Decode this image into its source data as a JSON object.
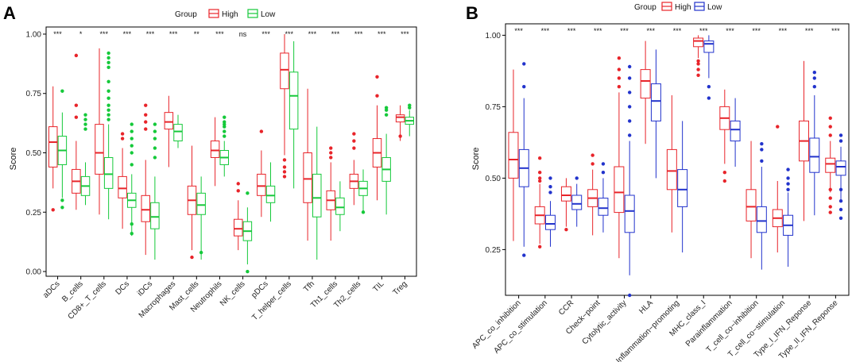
{
  "colors": {
    "high_a": "#e8242a",
    "low_a": "#15c93a",
    "high_b": "#e8242a",
    "low_b": "#2233cc"
  },
  "chart_data": [
    {
      "type": "boxplot",
      "panel_label": "A",
      "legend": {
        "title": "Group",
        "entries": [
          "High",
          "Low"
        ],
        "position": "top"
      },
      "ylabel": "Score",
      "ylim": [
        -0.02,
        1.03
      ],
      "yticks": [
        0.0,
        0.25,
        0.5,
        0.75,
        1.0
      ],
      "ytick_labels": [
        "0.00",
        "0.25",
        "0.50",
        "0.75",
        "1.00"
      ],
      "categories": [
        "aDCs",
        "B_cells",
        "CD8+_T_cells",
        "DCs",
        "iDCs",
        "Macrophages",
        "Mast_cells",
        "Neutrophils",
        "NK_cells",
        "pDCs",
        "T_helper_cells",
        "Tfh",
        "Th1_cells",
        "Th2_cells",
        "TIL",
        "Treg"
      ],
      "significance": [
        "***",
        "*",
        "***",
        "***",
        "***",
        "***",
        "**",
        "***",
        "ns",
        "***",
        "***",
        "***",
        "***",
        "***",
        "***",
        "***"
      ],
      "series": [
        {
          "name": "High",
          "boxes": [
            {
              "min": 0.35,
              "q1": 0.44,
              "median": 0.545,
              "q3": 0.61,
              "max": 0.78,
              "outliers": [
                0.26
              ]
            },
            {
              "min": 0.26,
              "q1": 0.33,
              "median": 0.38,
              "q3": 0.43,
              "max": 0.55,
              "outliers": [
                0.91,
                0.7,
                0.65
              ]
            },
            {
              "min": 0.24,
              "q1": 0.41,
              "median": 0.5,
              "q3": 0.62,
              "max": 0.94,
              "outliers": []
            },
            {
              "min": 0.18,
              "q1": 0.31,
              "median": 0.35,
              "q3": 0.4,
              "max": 0.52,
              "outliers": [
                0.56,
                0.58
              ]
            },
            {
              "min": 0.07,
              "q1": 0.21,
              "median": 0.26,
              "q3": 0.32,
              "max": 0.47,
              "outliers": [
                0.6,
                0.63,
                0.66,
                0.7
              ]
            },
            {
              "min": 0.44,
              "q1": 0.6,
              "median": 0.63,
              "q3": 0.67,
              "max": 0.74,
              "outliers": []
            },
            {
              "min": 0.09,
              "q1": 0.24,
              "median": 0.3,
              "q3": 0.36,
              "max": 0.53,
              "outliers": [
                0.06
              ]
            },
            {
              "min": 0.36,
              "q1": 0.48,
              "median": 0.51,
              "q3": 0.55,
              "max": 0.65,
              "outliers": []
            },
            {
              "min": 0.09,
              "q1": 0.15,
              "median": 0.18,
              "q3": 0.22,
              "max": 0.3,
              "outliers": [
                0.34,
                0.37
              ]
            },
            {
              "min": 0.23,
              "q1": 0.32,
              "median": 0.36,
              "q3": 0.41,
              "max": 0.51,
              "outliers": [
                0.59
              ]
            },
            {
              "min": 0.49,
              "q1": 0.77,
              "median": 0.85,
              "q3": 0.92,
              "max": 1.0,
              "outliers": [
                0.4,
                0.42,
                0.44,
                0.47
              ]
            },
            {
              "min": 0.13,
              "q1": 0.29,
              "median": 0.39,
              "q3": 0.5,
              "max": 0.77,
              "outliers": []
            },
            {
              "min": 0.13,
              "q1": 0.26,
              "median": 0.3,
              "q3": 0.34,
              "max": 0.46,
              "outliers": [
                0.48,
                0.5,
                0.52
              ]
            },
            {
              "min": 0.28,
              "q1": 0.35,
              "median": 0.38,
              "q3": 0.41,
              "max": 0.47,
              "outliers": [
                0.52,
                0.55,
                0.58
              ]
            },
            {
              "min": 0.3,
              "q1": 0.44,
              "median": 0.5,
              "q3": 0.56,
              "max": 0.7,
              "outliers": [
                0.82,
                0.74
              ]
            },
            {
              "min": 0.55,
              "q1": 0.63,
              "median": 0.65,
              "q3": 0.66,
              "max": 0.7,
              "outliers": [
                0.57
              ]
            }
          ]
        },
        {
          "name": "Low",
          "boxes": [
            {
              "min": 0.31,
              "q1": 0.45,
              "median": 0.51,
              "q3": 0.57,
              "max": 0.67,
              "outliers": [
                0.76,
                0.3,
                0.27
              ]
            },
            {
              "min": 0.28,
              "q1": 0.32,
              "median": 0.36,
              "q3": 0.4,
              "max": 0.46,
              "outliers": [
                0.62,
                0.64,
                0.66,
                0.6
              ]
            },
            {
              "min": 0.22,
              "q1": 0.35,
              "median": 0.41,
              "q3": 0.48,
              "max": 0.62,
              "outliers": [
                0.86,
                0.88,
                0.9,
                0.92,
                0.8,
                0.76,
                0.73,
                0.7,
                0.68,
                0.66,
                0.64
              ]
            },
            {
              "min": 0.15,
              "q1": 0.27,
              "median": 0.3,
              "q3": 0.33,
              "max": 0.41,
              "outliers": [
                0.45,
                0.5,
                0.53,
                0.56,
                0.59,
                0.62,
                0.2,
                0.16
              ]
            },
            {
              "min": 0.05,
              "q1": 0.18,
              "median": 0.23,
              "q3": 0.29,
              "max": 0.4,
              "outliers": [
                0.48,
                0.52,
                0.56,
                0.59,
                0.62
              ]
            },
            {
              "min": 0.52,
              "q1": 0.55,
              "median": 0.59,
              "q3": 0.62,
              "max": 0.66,
              "outliers": []
            },
            {
              "min": 0.05,
              "q1": 0.24,
              "median": 0.28,
              "q3": 0.33,
              "max": 0.4,
              "outliers": [
                0.08
              ]
            },
            {
              "min": 0.4,
              "q1": 0.45,
              "median": 0.48,
              "q3": 0.51,
              "max": 0.55,
              "outliers": [
                0.57,
                0.59,
                0.61,
                0.63,
                0.65,
                0.62
              ]
            },
            {
              "min": 0.03,
              "q1": 0.13,
              "median": 0.17,
              "q3": 0.21,
              "max": 0.27,
              "outliers": [
                0.0,
                0.33
              ]
            },
            {
              "min": 0.21,
              "q1": 0.29,
              "median": 0.32,
              "q3": 0.36,
              "max": 0.46,
              "outliers": []
            },
            {
              "min": 0.35,
              "q1": 0.6,
              "median": 0.74,
              "q3": 0.84,
              "max": 0.97,
              "outliers": []
            },
            {
              "min": 0.05,
              "q1": 0.23,
              "median": 0.31,
              "q3": 0.41,
              "max": 0.61,
              "outliers": []
            },
            {
              "min": 0.17,
              "q1": 0.24,
              "median": 0.27,
              "q3": 0.31,
              "max": 0.38,
              "outliers": []
            },
            {
              "min": 0.25,
              "q1": 0.32,
              "median": 0.35,
              "q3": 0.38,
              "max": 0.43,
              "outliers": [
                0.25
              ]
            },
            {
              "min": 0.24,
              "q1": 0.38,
              "median": 0.43,
              "q3": 0.48,
              "max": 0.58,
              "outliers": [
                0.66,
                0.68,
                0.69
              ]
            },
            {
              "min": 0.57,
              "q1": 0.62,
              "median": 0.635,
              "q3": 0.65,
              "max": 0.68,
              "outliers": [
                0.69,
                0.7
              ]
            }
          ]
        }
      ]
    },
    {
      "type": "boxplot",
      "panel_label": "B",
      "legend": {
        "title": "Group",
        "entries": [
          "High",
          "Low"
        ],
        "position": "top"
      },
      "ylabel": "Score",
      "ylim": [
        0.09,
        1.04
      ],
      "yticks": [
        0.25,
        0.5,
        0.75,
        1.0
      ],
      "ytick_labels": [
        "0.25",
        "0.50",
        "0.75",
        "1.00"
      ],
      "categories": [
        "APC_co_inhibition",
        "APC_co_stimulation",
        "CCR",
        "Check−point",
        "Cytolytic_activity",
        "HLA",
        "Inflammation−promoting",
        "MHC_class_I",
        "Parainflammation",
        "T_cell_co−inhibition",
        "T_cell_co−stimulation",
        "Type_I_IFN_Reponse",
        "Type_II_IFN_Reponse"
      ],
      "significance": [
        "***",
        "***",
        "***",
        "***",
        "***",
        "***",
        "***",
        "***",
        "***",
        "***",
        "***",
        "***",
        "***"
      ],
      "series": [
        {
          "name": "High",
          "boxes": [
            {
              "min": 0.28,
              "q1": 0.5,
              "median": 0.565,
              "q3": 0.66,
              "max": 0.88,
              "outliers": []
            },
            {
              "min": 0.27,
              "q1": 0.34,
              "median": 0.37,
              "q3": 0.4,
              "max": 0.48,
              "outliers": [
                0.26,
                0.49,
                0.5,
                0.52,
                0.57
              ]
            },
            {
              "min": 0.33,
              "q1": 0.42,
              "median": 0.44,
              "q3": 0.47,
              "max": 0.5,
              "outliers": [
                0.32
              ]
            },
            {
              "min": 0.3,
              "q1": 0.4,
              "median": 0.43,
              "q3": 0.46,
              "max": 0.53,
              "outliers": [
                0.55,
                0.58
              ]
            },
            {
              "min": 0.22,
              "q1": 0.38,
              "median": 0.45,
              "q3": 0.54,
              "max": 0.8,
              "outliers": [
                0.82,
                0.85,
                0.88,
                0.92
              ]
            },
            {
              "min": 0.62,
              "q1": 0.78,
              "median": 0.84,
              "q3": 0.88,
              "max": 0.98,
              "outliers": []
            },
            {
              "min": 0.31,
              "q1": 0.46,
              "median": 0.525,
              "q3": 0.6,
              "max": 0.79,
              "outliers": []
            },
            {
              "min": 0.92,
              "q1": 0.96,
              "median": 0.98,
              "q3": 0.99,
              "max": 1.0,
              "outliers": [
                0.86,
                0.88,
                0.9,
                0.91
              ]
            },
            {
              "min": 0.55,
              "q1": 0.67,
              "median": 0.71,
              "q3": 0.75,
              "max": 0.81,
              "outliers": [
                0.49,
                0.52
              ]
            },
            {
              "min": 0.22,
              "q1": 0.35,
              "median": 0.4,
              "q3": 0.46,
              "max": 0.63,
              "outliers": []
            },
            {
              "min": 0.24,
              "q1": 0.33,
              "median": 0.36,
              "q3": 0.39,
              "max": 0.49,
              "outliers": [
                0.68
              ]
            },
            {
              "min": 0.35,
              "q1": 0.56,
              "median": 0.63,
              "q3": 0.7,
              "max": 0.91,
              "outliers": []
            },
            {
              "min": 0.45,
              "q1": 0.52,
              "median": 0.55,
              "q3": 0.57,
              "max": 0.63,
              "outliers": [
                0.38,
                0.4,
                0.43,
                0.46,
                0.65,
                0.68,
                0.71
              ]
            }
          ]
        },
        {
          "name": "Low",
          "boxes": [
            {
              "min": 0.26,
              "q1": 0.47,
              "median": 0.535,
              "q3": 0.6,
              "max": 0.78,
              "outliers": [
                0.23,
                0.82,
                0.9
              ]
            },
            {
              "min": 0.26,
              "q1": 0.32,
              "median": 0.34,
              "q3": 0.37,
              "max": 0.42,
              "outliers": [
                0.45,
                0.47,
                0.5
              ]
            },
            {
              "min": 0.33,
              "q1": 0.39,
              "median": 0.41,
              "q3": 0.44,
              "max": 0.48,
              "outliers": [
                0.5
              ]
            },
            {
              "min": 0.31,
              "q1": 0.37,
              "median": 0.395,
              "q3": 0.43,
              "max": 0.5,
              "outliers": [
                0.52,
                0.55
              ]
            },
            {
              "min": 0.16,
              "q1": 0.31,
              "median": 0.385,
              "q3": 0.44,
              "max": 0.63,
              "outliers": [
                0.09,
                0.65,
                0.7,
                0.75,
                0.8,
                0.85,
                0.89
              ]
            },
            {
              "min": 0.5,
              "q1": 0.7,
              "median": 0.77,
              "q3": 0.83,
              "max": 0.95,
              "outliers": []
            },
            {
              "min": 0.24,
              "q1": 0.4,
              "median": 0.46,
              "q3": 0.53,
              "max": 0.7,
              "outliers": []
            },
            {
              "min": 0.85,
              "q1": 0.94,
              "median": 0.97,
              "q3": 0.98,
              "max": 1.0,
              "outliers": [
                0.78,
                0.82
              ]
            },
            {
              "min": 0.54,
              "q1": 0.63,
              "median": 0.67,
              "q3": 0.7,
              "max": 0.78,
              "outliers": []
            },
            {
              "min": 0.18,
              "q1": 0.31,
              "median": 0.35,
              "q3": 0.4,
              "max": 0.54,
              "outliers": [
                0.56,
                0.6,
                0.62
              ]
            },
            {
              "min": 0.19,
              "q1": 0.3,
              "median": 0.335,
              "q3": 0.37,
              "max": 0.45,
              "outliers": [
                0.46,
                0.48,
                0.5,
                0.53
              ]
            },
            {
              "min": 0.37,
              "q1": 0.52,
              "median": 0.575,
              "q3": 0.64,
              "max": 0.79,
              "outliers": [
                0.82,
                0.85,
                0.87
              ]
            },
            {
              "min": 0.42,
              "q1": 0.51,
              "median": 0.54,
              "q3": 0.56,
              "max": 0.61,
              "outliers": [
                0.36,
                0.39,
                0.42,
                0.46,
                0.63,
                0.65
              ]
            }
          ]
        }
      ]
    }
  ]
}
